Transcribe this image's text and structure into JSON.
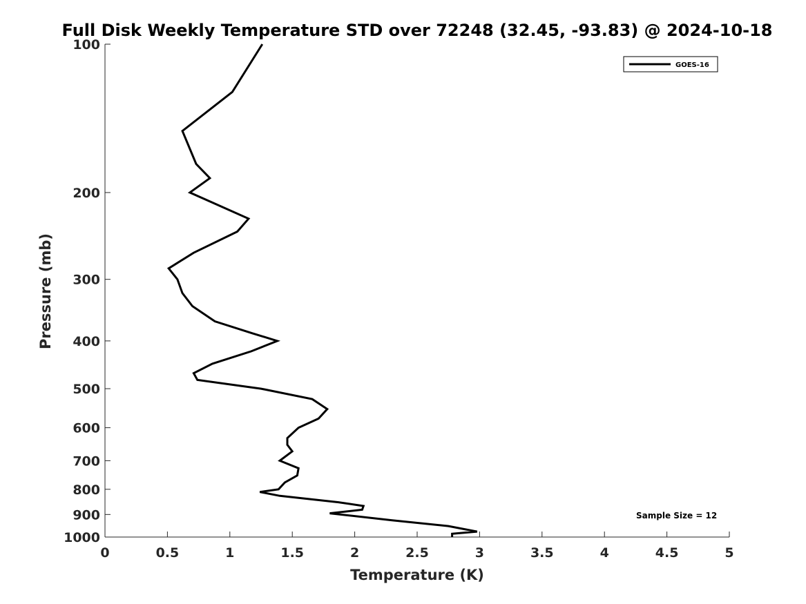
{
  "chart_data": {
    "type": "line",
    "title": "Full Disk Weekly Temperature STD over 72248 (32.45, -93.83) @ 2024-10-18",
    "xlabel": "Temperature (K)",
    "ylabel": "Pressure (mb)",
    "xlim": [
      0,
      5
    ],
    "ylim": [
      100,
      1000
    ],
    "y_scale": "log",
    "y_reversed": true,
    "grid": false,
    "legend_position": "top-right",
    "x_ticks": [
      "0",
      "0.5",
      "1",
      "1.5",
      "2",
      "2.5",
      "3",
      "3.5",
      "4",
      "4.5",
      "5"
    ],
    "y_ticks": [
      "100",
      "200",
      "300",
      "400",
      "500",
      "600",
      "700",
      "800",
      "900",
      "1000"
    ],
    "series": [
      {
        "name": "GOES-16",
        "color": "#000000",
        "points": [
          [
            1.26,
            100
          ],
          [
            1.02,
            125
          ],
          [
            0.62,
            150
          ],
          [
            0.73,
            175
          ],
          [
            0.84,
            187
          ],
          [
            0.68,
            200
          ],
          [
            1.15,
            226
          ],
          [
            1.06,
            240
          ],
          [
            0.71,
            265
          ],
          [
            0.51,
            285
          ],
          [
            0.58,
            300
          ],
          [
            0.62,
            320
          ],
          [
            0.7,
            340
          ],
          [
            0.88,
            365
          ],
          [
            1.18,
            386
          ],
          [
            1.38,
            400
          ],
          [
            1.17,
            420
          ],
          [
            0.86,
            445
          ],
          [
            0.71,
            465
          ],
          [
            0.74,
            480
          ],
          [
            1.25,
            500
          ],
          [
            1.66,
            525
          ],
          [
            1.78,
            550
          ],
          [
            1.71,
            575
          ],
          [
            1.55,
            600
          ],
          [
            1.46,
            630
          ],
          [
            1.46,
            650
          ],
          [
            1.5,
            670
          ],
          [
            1.4,
            700
          ],
          [
            1.55,
            725
          ],
          [
            1.54,
            750
          ],
          [
            1.44,
            775
          ],
          [
            1.39,
            800
          ],
          [
            1.24,
            810
          ],
          [
            1.4,
            825
          ],
          [
            1.87,
            850
          ],
          [
            2.07,
            865
          ],
          [
            2.06,
            880
          ],
          [
            1.8,
            895
          ],
          [
            2.3,
            925
          ],
          [
            2.75,
            950
          ],
          [
            2.98,
            975
          ],
          [
            2.78,
            985
          ],
          [
            2.78,
            1000
          ]
        ]
      }
    ],
    "annotation": "Sample Size = 12"
  }
}
